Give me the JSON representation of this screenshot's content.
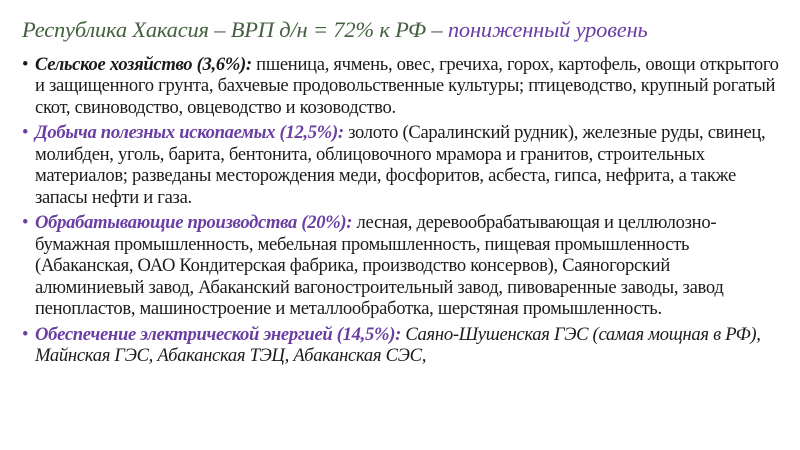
{
  "title": {
    "main": "Республика Хакасия – ВРП д/н = 72% к РФ – ",
    "highlight": "пониженный уровень"
  },
  "bullets": [
    {
      "lead": "Сельское хозяйство (3,6%):",
      "text": " пшеница, ячмень, овес, гречиха, горох, картофель, овощи открытого и защищенного грунта, бахчевые продовольственные культуры; птицеводство, крупный рогатый скот, свиноводство, овцеводство и козоводство.",
      "lead_color": "#1b1b1b"
    },
    {
      "lead": "Добыча полезных ископаемых (12,5%):",
      "text": " золото (Саралинский рудник), железные руды, свинец, молибден, уголь, барита, бентонита, облицовочного мрамора и гранитов, строительных материалов; разведаны месторождения меди, фосфоритов, асбеста, гипса, нефрита, а также запасы нефти и газа.",
      "lead_color": "#6a3ea3"
    },
    {
      "lead": "Обрабатывающие производства (20%):",
      "text": " лесная, деревообрабатывающая и целлюлозно-бумажная промышленность, мебельная промышленность, пищевая промышленность (Абаканская, ОАО Кондитерская фабрика, производство консервов), Саяногорский алюминиевый завод, Абаканский вагоностроительный завод, пивоваренные заводы, завод пенопластов, машиностроение и металлообработка, шерстяная промышленность.",
      "lead_color": "#6a3ea3"
    },
    {
      "lead": "Обеспечение электрической энергией (14,5%):",
      "text": " Саяно-Шушенская ГЭС (самая мощная в РФ), Майнская ГЭС, Абаканская ТЭЦ, Абаканская СЭС,",
      "lead_color": "#6a3ea3"
    }
  ],
  "colors": {
    "title_main": "#44613f",
    "title_highlight": "#6a3ea3",
    "body_text": "#1b1b1b",
    "background": "#ffffff"
  }
}
